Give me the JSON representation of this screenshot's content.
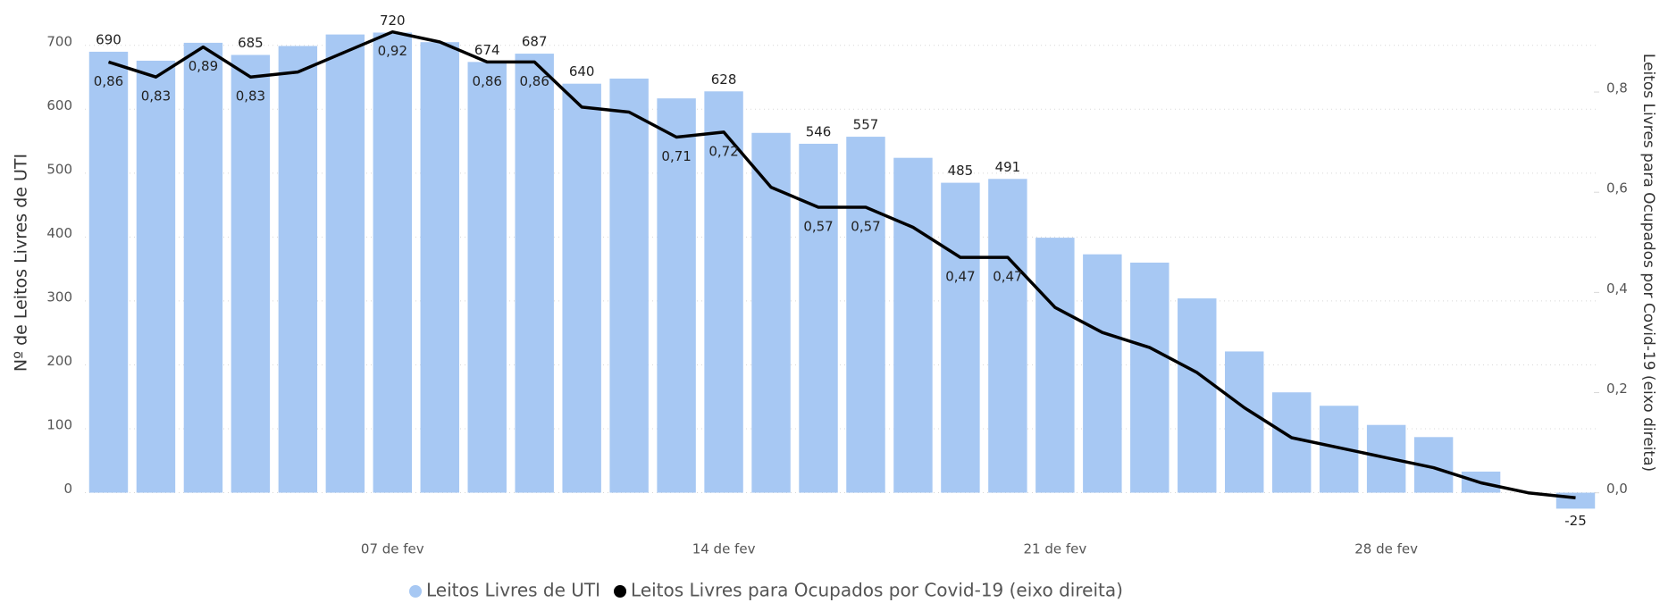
{
  "chart_data": {
    "type": "bar_line",
    "categories": [
      null,
      null,
      null,
      null,
      null,
      null,
      "07 de fev",
      null,
      null,
      null,
      null,
      null,
      null,
      "14 de fev",
      null,
      null,
      null,
      null,
      null,
      null,
      "21 de fev",
      null,
      null,
      null,
      null,
      null,
      null,
      "28 de fev",
      null,
      null,
      null,
      null
    ],
    "series": [
      {
        "name": "Leitos Livres de UTI",
        "type": "bar",
        "color": "#a7c8f3",
        "axis": "y",
        "values": [
          690,
          676,
          704,
          685,
          699,
          717,
          720,
          705,
          674,
          687,
          640,
          648,
          617,
          628,
          563,
          546,
          557,
          524,
          485,
          491,
          399,
          373,
          360,
          304,
          221,
          157,
          136,
          106,
          87,
          33,
          0,
          -25
        ],
        "value_labels": [
          "690",
          null,
          null,
          "685",
          null,
          null,
          "720",
          null,
          "674",
          "687",
          "640",
          null,
          null,
          "628",
          null,
          "546",
          "557",
          null,
          "485",
          "491",
          null,
          null,
          null,
          null,
          null,
          null,
          null,
          null,
          null,
          null,
          null,
          "-25"
        ]
      },
      {
        "name": "Leitos Livres para Ocupados por Covid-19 (eixo direita)",
        "type": "line",
        "color": "#000000",
        "axis": "y2",
        "values": [
          0.86,
          0.83,
          0.89,
          0.83,
          0.84,
          0.88,
          0.92,
          0.9,
          0.86,
          0.86,
          0.77,
          0.76,
          0.71,
          0.72,
          0.61,
          0.57,
          0.57,
          0.53,
          0.47,
          0.47,
          0.37,
          0.32,
          0.29,
          0.24,
          0.17,
          0.11,
          0.09,
          0.07,
          0.05,
          0.02,
          0.0,
          -0.01
        ],
        "value_labels": [
          "0,86",
          "0,83",
          "0,89",
          "0,83",
          null,
          null,
          "0,92",
          null,
          "0,86",
          "0,86",
          null,
          null,
          "0,71",
          "0,72",
          null,
          "0,57",
          "0,57",
          null,
          "0,47",
          "0,47",
          null,
          null,
          null,
          null,
          null,
          null,
          null,
          null,
          null,
          null,
          null,
          null
        ]
      }
    ],
    "ylabel": "Nº de Leitos Livres de UTI",
    "y2label": "Leitos Livres para Ocupados por Covid-19 (eixo direita)",
    "ylim": [
      -30,
      750
    ],
    "yticks": [
      0,
      100,
      200,
      300,
      400,
      500,
      600,
      700
    ],
    "y2lim": [
      -0.038,
      0.957
    ],
    "y2ticks": [
      {
        "value": 0,
        "label": "0,0"
      },
      {
        "value": 0.2,
        "label": "0,2"
      },
      {
        "value": 0.4,
        "label": "0,4"
      },
      {
        "value": 0.6,
        "label": "0,6"
      },
      {
        "value": 0.8,
        "label": "0,8"
      }
    ],
    "grid": true,
    "legend": "bottom"
  }
}
